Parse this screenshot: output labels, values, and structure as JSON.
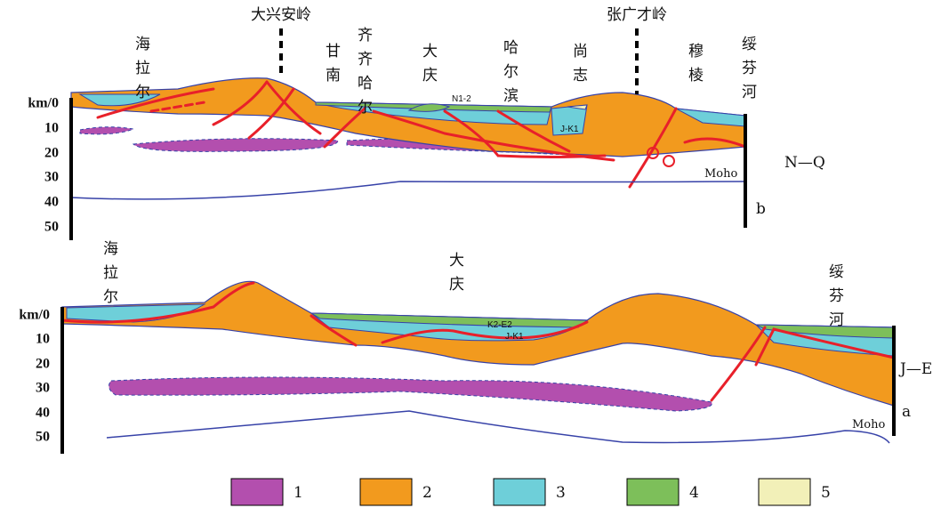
{
  "section_b": {
    "labels": [
      "海拉尔",
      "大兴安岭",
      "甘南",
      "齐齐哈尔",
      "大庆",
      "N1-2",
      "哈尔滨",
      "尚志",
      "张广才岭",
      "穆棱",
      "绥芬河",
      "J-K1"
    ],
    "depth_ticks": [
      "km/0",
      "10",
      "20",
      "30",
      "40",
      "50"
    ],
    "moho": "Moho",
    "unit": "N—Q",
    "panel": "b"
  },
  "section_a": {
    "labels": [
      "海拉尔",
      "大庆",
      "绥芬河",
      "K2-E2",
      "J-K1"
    ],
    "depth_ticks": [
      "km/0",
      "10",
      "20",
      "30",
      "40",
      "50"
    ],
    "moho": "Moho",
    "unit": "J—E",
    "panel": "a"
  },
  "legend": [
    "1",
    "2",
    "3",
    "4",
    "5"
  ]
}
